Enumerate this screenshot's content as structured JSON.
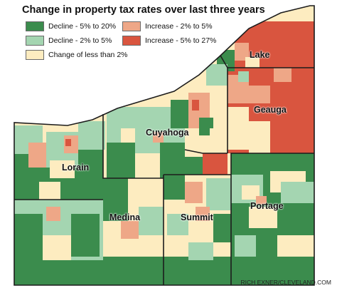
{
  "title": "Change in property tax rates over last three years",
  "legend": [
    {
      "label": "Decline - 5% to 20%",
      "color": "#3b8c4d"
    },
    {
      "label": "Decline - 2% to 5%",
      "color": "#a4d5b1"
    },
    {
      "label": "Change of less than 2%",
      "color": "#fdecc0"
    },
    {
      "label": "Increase - 2% to 5%",
      "color": "#eea787"
    },
    {
      "label": "Increase - 5% to 27%",
      "color": "#d9553f"
    }
  ],
  "counties": {
    "lake": "Lake",
    "geauga": "Geauga",
    "cuyahoga": "Cuyahoga",
    "lorain": "Lorain",
    "medina": "Medina",
    "summit": "Summit",
    "portage": "Portage"
  },
  "water_color": "#ffffff",
  "credit": "RICH EXNER/CLEVELAND.COM"
}
